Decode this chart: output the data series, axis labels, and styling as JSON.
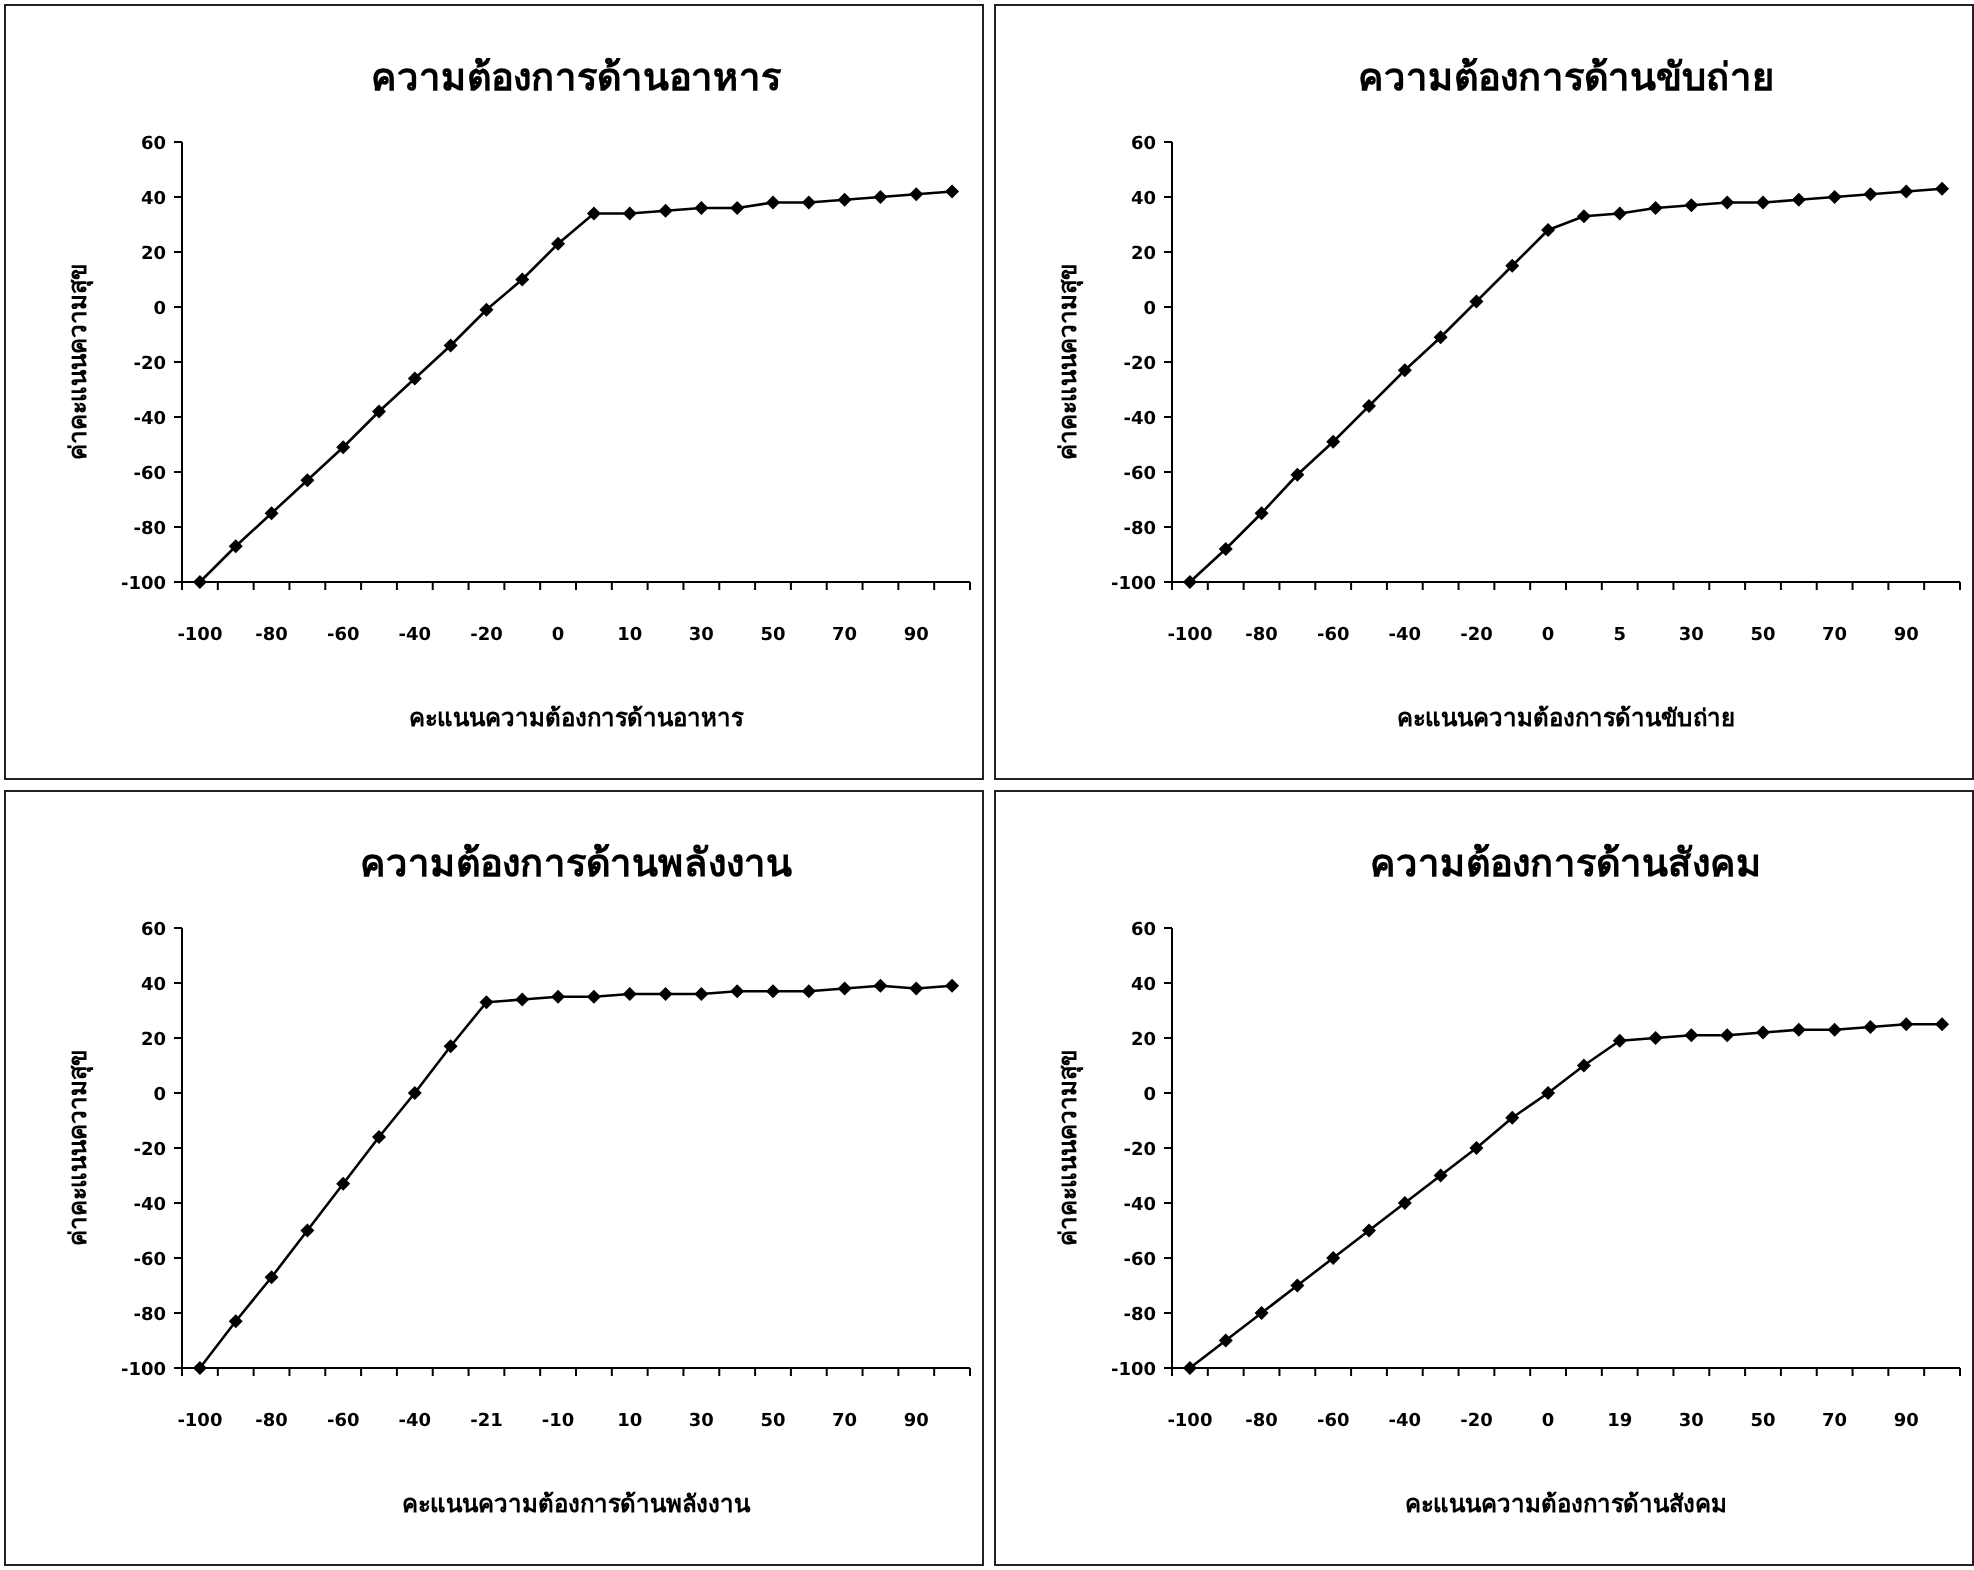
{
  "chart_data": [
    {
      "type": "line",
      "title": "ความต้องการด้านอาหาร",
      "xlabel": "คะแนนความต้องการด้านอาหาร",
      "ylabel": "ค่าคะแนนความสุข",
      "categories": [
        "-100",
        null,
        "-80",
        null,
        "-60",
        null,
        "-40",
        null,
        "-20",
        null,
        "0",
        null,
        "10",
        null,
        "30",
        null,
        "50",
        null,
        "70",
        null,
        "90",
        null
      ],
      "values": [
        -100,
        -87,
        -75,
        -63,
        -51,
        -38,
        -26,
        -14,
        -1,
        10,
        23,
        34,
        34,
        35,
        36,
        36,
        38,
        38,
        39,
        40,
        41,
        42
      ],
      "color": "#000000",
      "marker": "diamond",
      "ylim": [
        -100,
        60
      ],
      "yticks": [
        -100,
        -80,
        -60,
        -40,
        -20,
        0,
        20,
        40,
        60
      ]
    },
    {
      "type": "line",
      "title": "ความต้องการด้านขับถ่าย",
      "xlabel": "คะแนนความต้องการด้านขับถ่าย",
      "ylabel": "ค่าคะแนนความสุข",
      "categories": [
        "-100",
        null,
        "-80",
        null,
        "-60",
        null,
        "-40",
        null,
        "-20",
        null,
        "0",
        null,
        "5",
        null,
        "30",
        null,
        "50",
        null,
        "70",
        null,
        "90",
        null
      ],
      "values": [
        -100,
        -88,
        -75,
        -61,
        -49,
        -36,
        -23,
        -11,
        2,
        15,
        28,
        33,
        34,
        36,
        37,
        38,
        38,
        39,
        40,
        41,
        42,
        43
      ],
      "color": "#000000",
      "marker": "diamond",
      "ylim": [
        -100,
        60
      ],
      "yticks": [
        -100,
        -80,
        -60,
        -40,
        -20,
        0,
        20,
        40,
        60
      ]
    },
    {
      "type": "line",
      "title": "ความต้องการด้านพลังงาน",
      "xlabel": "คะแนนความต้องการด้านพลังงาน",
      "ylabel": "ค่าคะแนนความสุข",
      "categories": [
        "-100",
        null,
        "-80",
        null,
        "-60",
        null,
        "-40",
        null,
        "-21",
        null,
        "-10",
        null,
        "10",
        null,
        "30",
        null,
        "50",
        null,
        "70",
        null,
        "90",
        null
      ],
      "values": [
        -100,
        -83,
        -67,
        -50,
        -33,
        -16,
        0,
        17,
        33,
        34,
        35,
        35,
        36,
        36,
        36,
        37,
        37,
        37,
        38,
        39,
        38,
        39
      ],
      "color": "#000000",
      "marker": "diamond",
      "ylim": [
        -100,
        60
      ],
      "yticks": [
        -100,
        -80,
        -60,
        -40,
        -20,
        0,
        20,
        40,
        60
      ]
    },
    {
      "type": "line",
      "title": "ความต้องการด้านสังคม",
      "xlabel": "คะแนนความต้องการด้านสังคม",
      "ylabel": "ค่าคะแนนความสุข",
      "categories": [
        "-100",
        null,
        "-80",
        null,
        "-60",
        null,
        "-40",
        null,
        "-20",
        null,
        "0",
        null,
        "19",
        null,
        "30",
        null,
        "50",
        null,
        "70",
        null,
        "90",
        null
      ],
      "values": [
        -100,
        -90,
        -80,
        -70,
        -60,
        -50,
        -40,
        -30,
        -20,
        -9,
        0,
        10,
        19,
        20,
        21,
        21,
        22,
        23,
        23,
        24,
        25,
        25
      ],
      "color": "#000000",
      "marker": "diamond",
      "ylim": [
        -100,
        60
      ],
      "yticks": [
        -100,
        -80,
        -60,
        -40,
        -20,
        0,
        20,
        40,
        60
      ]
    }
  ]
}
